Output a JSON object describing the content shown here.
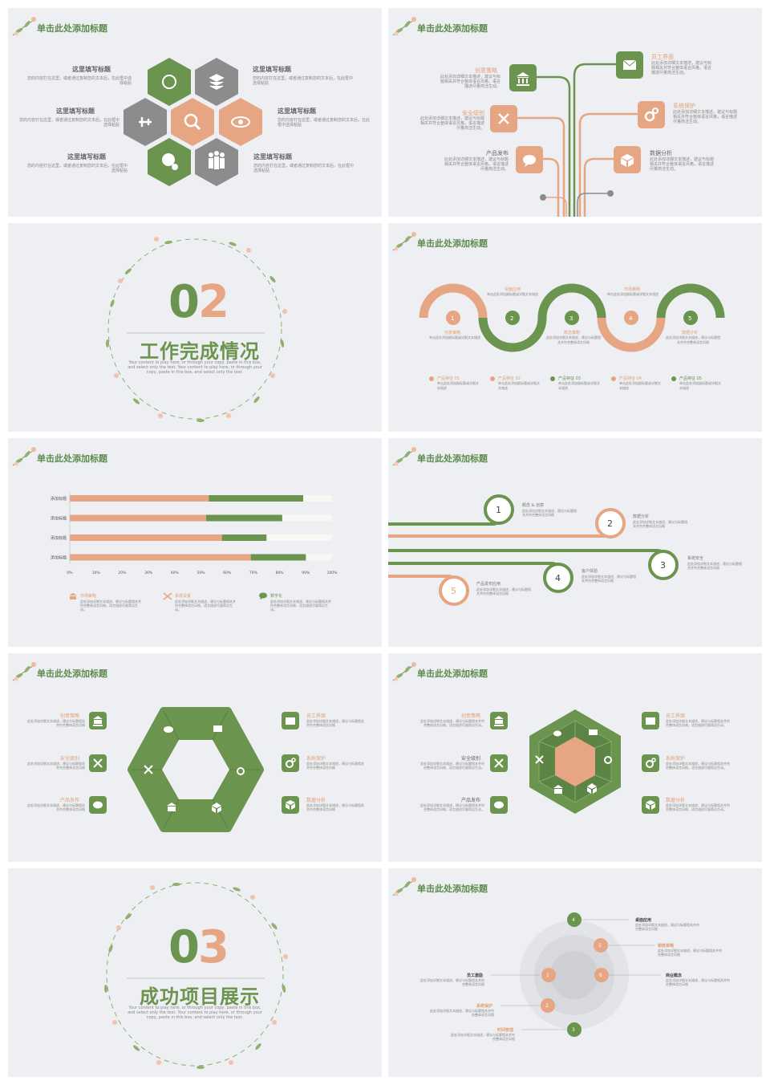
{
  "slide_title": "单击此处添加标题",
  "colors": {
    "green": "#6b944f",
    "orange": "#e6a583",
    "gray": "#8c8c8c",
    "bg": "#eeeff2"
  },
  "s1": {
    "items": [
      {
        "title": "这里填写标题",
        "desc": "您的内容打在这里，或者通过复制您的文本后，在此框中选择粘贴"
      },
      {
        "title": "这里填写标题",
        "desc": "您的内容打在这里，或者通过复制您的文本后，在此框中选择粘贴"
      },
      {
        "title": "这里填写标题",
        "desc": "您的内容打在这里，或者通过复制您的文本后，在此框中选择粘贴"
      },
      {
        "title": "这里填写标题",
        "desc": "您的内容打在这里，或者通过复制您的文本后，在此框中选择粘贴"
      },
      {
        "title": "这里填写标题",
        "desc": "您的内容打在这里，或者通过复制您的文本后，在此框中选择粘贴"
      },
      {
        "title": "这里填写标题",
        "desc": "您的内容打在这里，或者通过复制您的文本后，在此框中选择粘贴"
      }
    ]
  },
  "s2": {
    "items": [
      {
        "label": "创意策略",
        "desc": "此处添加详细文本描述，建议与标题相关并符合整体语言风格，语言描述尽量简洁生动。"
      },
      {
        "label": "员工界面",
        "desc": "此处添加详细文本描述，建议与标题相关并符合整体语言风格，语言描述尽量简洁生动。"
      },
      {
        "label": "安全级别",
        "desc": "此处添加详细文本描述，建议与标题相关并符合整体语言风格，语言描述尽量简洁生动。"
      },
      {
        "label": "系统保护",
        "desc": "此处添加详细文本描述，建议与标题相关并符合整体语言风格，语言描述尽量简洁生动。"
      },
      {
        "label": "产品发布",
        "desc": "此处添加详细文本描述，建议与标题相关并符合整体语言风格，语言描述尽量简洁生动。"
      },
      {
        "label": "数据分析",
        "desc": "此处添加详细文本描述，建议与标题相关并符合整体语言风格，语言描述尽量简洁生动。"
      }
    ]
  },
  "s3": {
    "num_a": "0",
    "num_b": "2",
    "title": "工作完成情况",
    "en": "Your content to play here, or through your copy, paste in this box, and select only the text. Your content to play here, or through your copy, paste in this box, and select only the text."
  },
  "s4": {
    "nums": [
      "1",
      "2",
      "3",
      "4",
      "5"
    ],
    "top": [
      {
        "label": "桌面应用",
        "desc": "单击此处添加副标题或详细文本描述"
      },
      {
        "label": "市场策略",
        "desc": "单击此处添加副标题或详细文本描述"
      }
    ],
    "bottom": [
      {
        "label": "创意策略",
        "desc": "单击此处添加副标题或详细文本描述"
      },
      {
        "label": "概念策略",
        "desc": "此处添加详细文本描述，建议与标题相关并符合整体语言风格"
      },
      {
        "label": "数据分析",
        "desc": "此处添加详细文本描述，建议与标题相关并符合整体语言风格"
      }
    ],
    "features": [
      {
        "label": "产品特征 01",
        "desc": "单击此处添加副标题或详细文本描述"
      },
      {
        "label": "产品特征 02",
        "desc": "单击此处添加副标题或详细文本描述"
      },
      {
        "label": "产品特征 03",
        "desc": "单击此处添加副标题或详细文本描述"
      },
      {
        "label": "产品特征 04",
        "desc": "单击此处添加副标题或详细文本描述"
      },
      {
        "label": "产品特征 05",
        "desc": "单击此处添加副标题或详细文本描述"
      }
    ]
  },
  "chart_data": {
    "type": "bar",
    "stacked": true,
    "orientation": "horizontal",
    "categories": [
      "添加标题",
      "添加标题",
      "添加标题",
      "添加标题"
    ],
    "series": [
      {
        "values": [
          53,
          52,
          58,
          69
        ]
      },
      {
        "values": [
          36,
          29,
          17,
          21
        ]
      }
    ],
    "xticks": [
      "0%",
      "10%",
      "20%",
      "30%",
      "40%",
      "50%",
      "60%",
      "70%",
      "80%",
      "90%",
      "100%"
    ],
    "xlim": [
      0,
      100
    ],
    "legend": [
      {
        "label": "市场策略",
        "desc": "此处添加详细文本描述，建议与标题相关并符合整体语言风格，语言描述尽量简洁生动。"
      },
      {
        "label": "系统设置",
        "desc": "此处添加详细文本描述，建议与标题相关并符合整体语言风格，语言描述尽量简洁生动。"
      },
      {
        "label": "数字化",
        "desc": "此处添加详细文本描述，建议与标题相关并符合整体语言风格，语言描述尽量简洁生动。"
      }
    ]
  },
  "s6": {
    "items": [
      {
        "n": "1",
        "label": "概念 & 创意",
        "desc": "此处添加详细文本描述，建议与标题相关并符合整体语言风格"
      },
      {
        "n": "2",
        "label": "数据分析",
        "desc": "此处添加详细文本描述，建议与标题相关并符合整体语言风格"
      },
      {
        "n": "3",
        "label": "系统安全",
        "desc": "此处添加详细文本描述，建议与标题相关并符合整体语言风格"
      },
      {
        "n": "4",
        "label": "客户体验",
        "desc": "此处添加详细文本描述，建议与标题相关并符合整体语言风格"
      },
      {
        "n": "5",
        "label": "产品发布应用",
        "desc": "此处添加详细文本描述，建议与标题相关并符合整体语言风格"
      }
    ]
  },
  "s7": {
    "items": [
      {
        "label": "创意策略",
        "desc": "此处添加详细文本描述，建议与标题相关并符合整体语言风格"
      },
      {
        "label": "员工界面",
        "desc": "此处添加详细文本描述，建议与标题相关并符合整体语言风格"
      },
      {
        "label": "安全级别",
        "desc": "此处添加详细文本描述，建议与标题相关并符合整体语言风格"
      },
      {
        "label": "系统保护",
        "desc": "此处添加详细文本描述，建议与标题相关并符合整体语言风格"
      },
      {
        "label": "产品发布",
        "desc": "此处添加详细文本描述，建议与标题相关并符合整体语言风格"
      },
      {
        "label": "数据分析",
        "desc": "此处添加详细文本描述，建议与标题相关并符合整体语言风格"
      }
    ]
  },
  "s8": {
    "items": [
      {
        "label": "创意策略",
        "desc": "此处添加详细文本描述，建议与标题相关并符合整体语言风格，语言描述尽量简洁生动。"
      },
      {
        "label": "员工界面",
        "desc": "此处添加详细文本描述，建议与标题相关并符合整体语言风格，语言描述尽量简洁生动。"
      },
      {
        "label": "安全级别",
        "desc": "此处添加详细文本描述，建议与标题相关并符合整体语言风格，语言描述尽量简洁生动。"
      },
      {
        "label": "系统保护",
        "desc": "此处添加详细文本描述，建议与标题相关并符合整体语言风格，语言描述尽量简洁生动。"
      },
      {
        "label": "产品发布",
        "desc": "此处添加详细文本描述，建议与标题相关并符合整体语言风格，语言描述尽量简洁生动。"
      },
      {
        "label": "数据分析",
        "desc": "此处添加详细文本描述，建议与标题相关并符合整体语言风格，语言描述尽量简洁生动。"
      }
    ]
  },
  "s9": {
    "num_a": "0",
    "num_b": "3",
    "title": "成功项目展示",
    "en": "Your content to play here, or through your copy, paste in this box, and select only the text. Your content to play here, or through your copy, paste in this box, and select only the text."
  },
  "s10": {
    "nums": [
      "1",
      "2",
      "3",
      "4",
      "5",
      "6"
    ],
    "items": [
      {
        "label": "桌面应用",
        "desc": "此处添加详细文本描述，建议与标题相关并符合整体语言风格"
      },
      {
        "label": "销售策略",
        "desc": "此处添加详细文本描述，建议与标题相关并符合整体语言风格"
      },
      {
        "label": "商业概念",
        "desc": "此处添加详细文本描述，建议与标题相关并符合整体语言风格"
      },
      {
        "label": "员工激励",
        "desc": "此处添加详细文本描述，建议与标题相关并符合整体语言风格"
      },
      {
        "label": "系统保护",
        "desc": "此处添加详细文本描述，建议与标题相关并符合整体语言风格"
      },
      {
        "label": "时间管理",
        "desc": "此处添加详细文本描述，建议与标题相关并符合整体语言风格"
      }
    ]
  }
}
